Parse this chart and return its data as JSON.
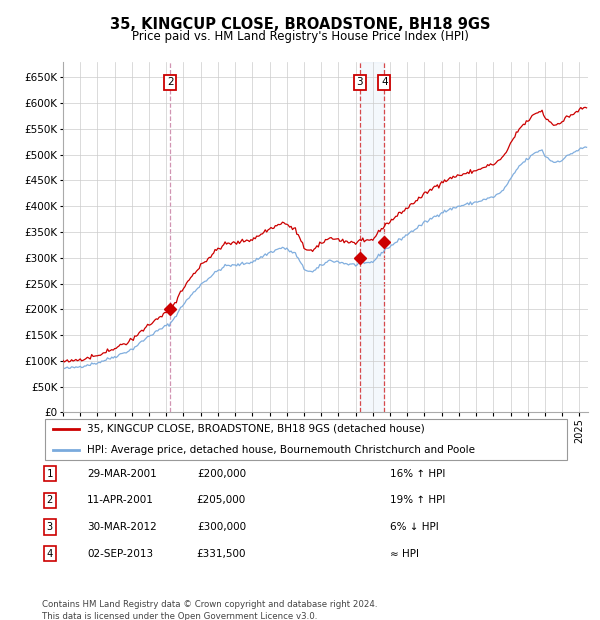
{
  "title": "35, KINGCUP CLOSE, BROADSTONE, BH18 9GS",
  "subtitle": "Price paid vs. HM Land Registry's House Price Index (HPI)",
  "legend_label_red": "35, KINGCUP CLOSE, BROADSTONE, BH18 9GS (detached house)",
  "legend_label_blue": "HPI: Average price, detached house, Bournemouth Christchurch and Poole",
  "footer": "Contains HM Land Registry data © Crown copyright and database right 2024.\nThis data is licensed under the Open Government Licence v3.0.",
  "transactions": [
    {
      "num": 1,
      "date": "29-MAR-2001",
      "price": "£200,000",
      "hpi_rel": "16% ↑ HPI",
      "date_dec": 2001.24
    },
    {
      "num": 2,
      "date": "11-APR-2001",
      "price": "£205,000",
      "hpi_rel": "19% ↑ HPI",
      "date_dec": 2001.28
    },
    {
      "num": 3,
      "date": "30-MAR-2012",
      "price": "£300,000",
      "hpi_rel": "6% ↓ HPI",
      "date_dec": 2012.25
    },
    {
      "num": 4,
      "date": "02-SEP-2013",
      "price": "£331,500",
      "hpi_rel": "≈ HPI",
      "date_dec": 2013.67
    }
  ],
  "ylim": [
    0,
    680000
  ],
  "yticks": [
    0,
    50000,
    100000,
    150000,
    200000,
    250000,
    300000,
    350000,
    400000,
    450000,
    500000,
    550000,
    600000,
    650000
  ],
  "xlim_start": 1995.0,
  "xlim_end": 2025.5,
  "red_color": "#cc0000",
  "blue_color": "#7aaadd",
  "grid_color": "#cccccc",
  "bg_color": "#ffffff",
  "shade_color": "#ddeeff",
  "vline_color": "#cc88aa"
}
